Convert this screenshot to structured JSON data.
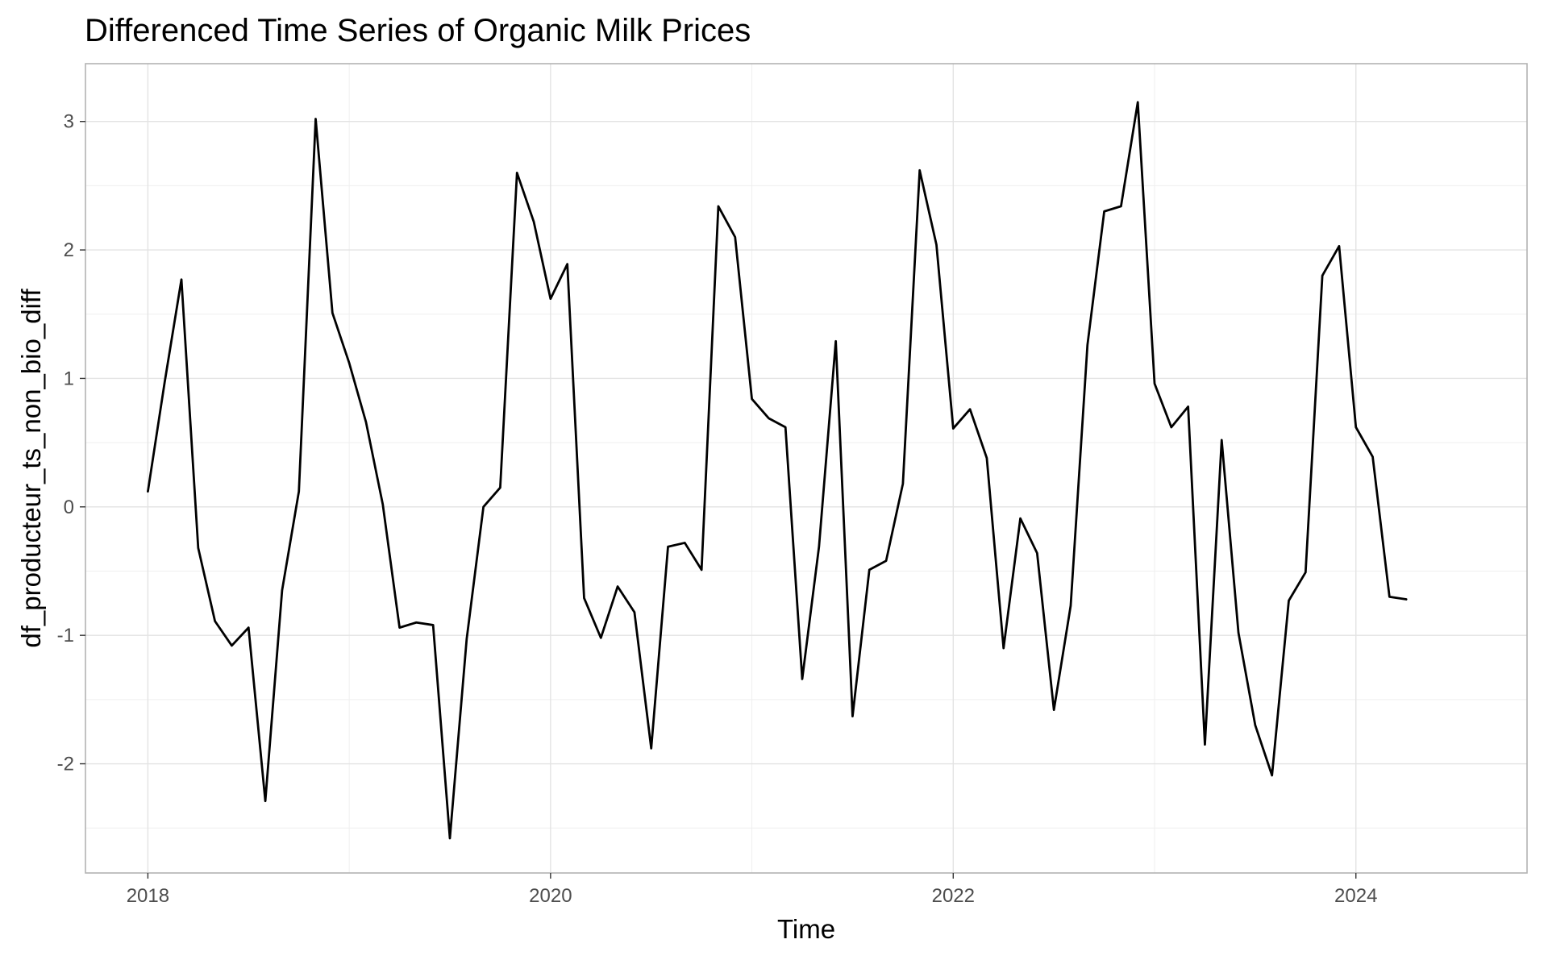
{
  "chart_data": {
    "type": "line",
    "title": "Differenced Time Series of Organic Milk Prices",
    "xlabel": "Time",
    "ylabel": "df_producteur_ts_non_bio_diff",
    "xlim": [
      2017.69,
      2024.85
    ],
    "ylim": [
      -2.85,
      3.45
    ],
    "x_ticks": [
      2018,
      2020,
      2022,
      2024
    ],
    "y_ticks": [
      -2,
      -1,
      0,
      1,
      2,
      3
    ],
    "grid": true,
    "legend": "none",
    "line_color": "#000000",
    "series": [
      {
        "start": 2018,
        "frequency": 12,
        "values": [
          0.12,
          0.97,
          1.77,
          -0.32,
          -0.89,
          -1.08,
          -0.94,
          -2.29,
          -0.65,
          0.12,
          3.02,
          1.51,
          1.12,
          0.66,
          0.02,
          -0.94,
          -0.9,
          -0.92,
          -2.58,
          -1.03,
          0.0,
          0.15,
          2.6,
          2.22,
          1.62,
          1.89,
          -0.71,
          -1.02,
          -0.62,
          -0.82,
          -1.88,
          -0.31,
          -0.28,
          -0.49,
          2.34,
          2.1,
          0.84,
          0.69,
          0.62,
          -1.34,
          -0.31,
          1.29,
          -1.63,
          -0.49,
          -0.42,
          0.18,
          2.62,
          2.04,
          0.61,
          0.76,
          0.38,
          -1.1,
          -0.09,
          -0.36,
          -1.58,
          -0.77,
          1.26,
          2.3,
          2.34,
          3.15,
          0.96,
          0.62,
          0.78,
          -1.85,
          0.52,
          -0.98,
          -1.7,
          -2.09,
          -0.73,
          -0.51,
          1.8,
          2.03,
          0.62,
          0.39,
          -0.7,
          -0.72
        ]
      }
    ]
  }
}
